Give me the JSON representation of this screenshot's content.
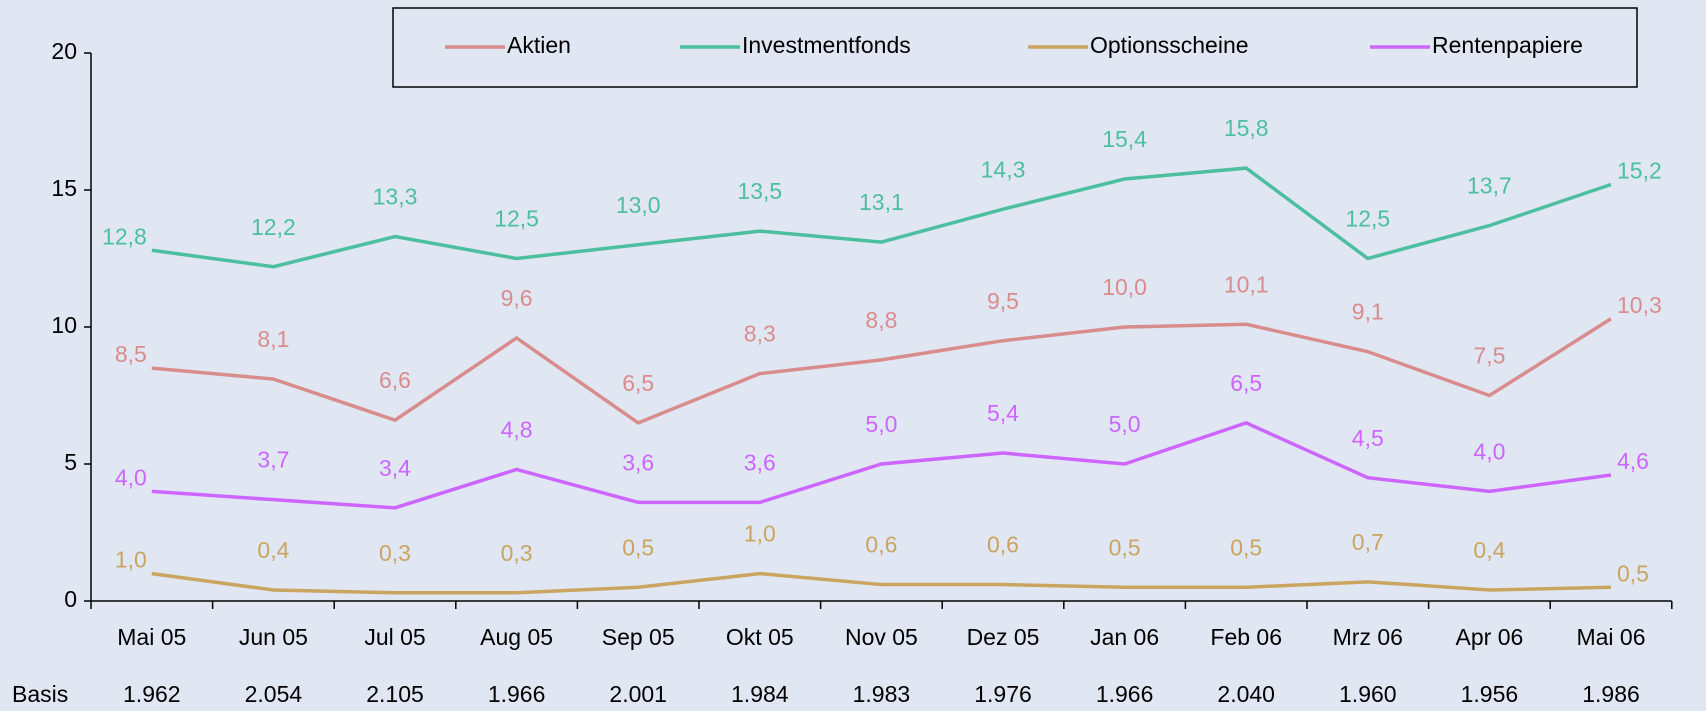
{
  "chart_data": {
    "type": "line",
    "categories": [
      "Mai 05",
      "Jun 05",
      "Jul 05",
      "Aug 05",
      "Sep 05",
      "Okt 05",
      "Nov 05",
      "Dez 05",
      "Jan 06",
      "Feb 06",
      "Mrz 06",
      "Apr 06",
      "Mai 06"
    ],
    "series": [
      {
        "name": "Aktien",
        "color": "#d98c8c",
        "values": [
          8.5,
          8.1,
          6.6,
          9.6,
          6.5,
          8.3,
          8.8,
          9.5,
          10.0,
          10.1,
          9.1,
          7.5,
          10.3
        ],
        "value_labels": [
          "8,5",
          "8,1",
          "6,6",
          "9,6",
          "6,5",
          "8,3",
          "8,8",
          "9,5",
          "10,0",
          "10,1",
          "9,1",
          "7,5",
          "10,3"
        ]
      },
      {
        "name": "Investmentfonds",
        "color": "#4cbf9f",
        "values": [
          12.8,
          12.2,
          13.3,
          12.5,
          13.0,
          13.5,
          13.1,
          14.3,
          15.4,
          15.8,
          12.5,
          13.7,
          15.2
        ],
        "value_labels": [
          "12,8",
          "12,2",
          "13,3",
          "12,5",
          "13,0",
          "13,5",
          "13,1",
          "14,3",
          "15,4",
          "15,8",
          "12,5",
          "13,7",
          "15,2"
        ]
      },
      {
        "name": "Optionsscheine",
        "color": "#c9a560",
        "values": [
          1.0,
          0.4,
          0.3,
          0.3,
          0.5,
          1.0,
          0.6,
          0.6,
          0.5,
          0.5,
          0.7,
          0.4,
          0.5
        ],
        "value_labels": [
          "1,0",
          "0,4",
          "0,3",
          "0,3",
          "0,5",
          "1,0",
          "0,6",
          "0,6",
          "0,5",
          "0,5",
          "0,7",
          "0,4",
          "0,5"
        ]
      },
      {
        "name": "Rentenpapiere",
        "color": "#cc66ff",
        "values": [
          4.0,
          3.7,
          3.4,
          4.8,
          3.6,
          3.6,
          5.0,
          5.4,
          5.0,
          6.5,
          4.5,
          4.0,
          4.6
        ],
        "value_labels": [
          "4,0",
          "3,7",
          "3,4",
          "4,8",
          "3,6",
          "3,6",
          "5,0",
          "5,4",
          "5,0",
          "6,5",
          "4,5",
          "4,0",
          "4,6"
        ]
      }
    ],
    "ylim": [
      0,
      20
    ],
    "yticks": [
      0,
      5,
      10,
      15,
      20
    ],
    "grid": false,
    "legend": "top",
    "basis": {
      "label": "Basis",
      "values": [
        "1.962",
        "2.054",
        "2.105",
        "1.966",
        "2.001",
        "1.984",
        "1.983",
        "1.976",
        "1.966",
        "2.040",
        "1.960",
        "1.956",
        "1.986"
      ]
    }
  }
}
